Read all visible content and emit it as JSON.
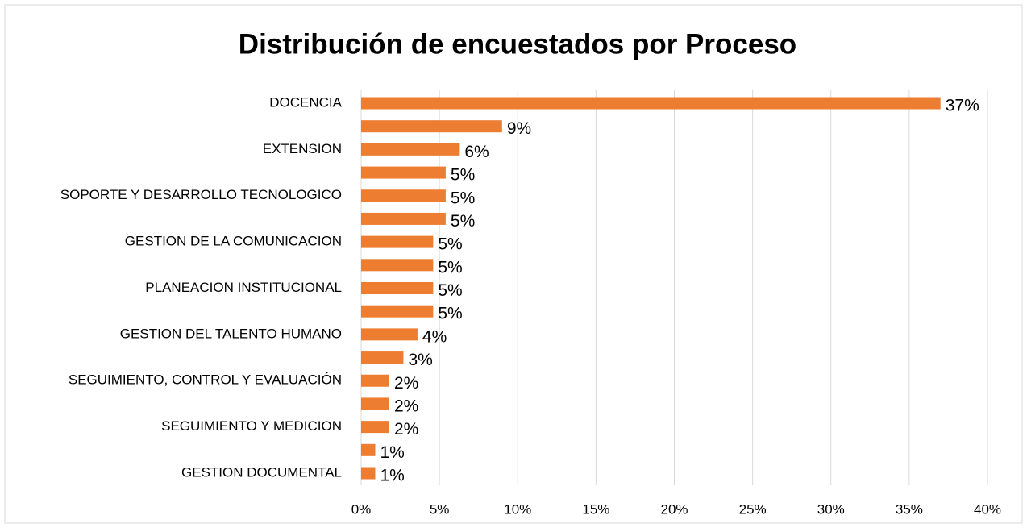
{
  "chart_data": {
    "type": "bar",
    "orientation": "horizontal",
    "title": "Distribución de encuestados por Proceso",
    "categories": [
      "DOCENCIA",
      null,
      "EXTENSION",
      null,
      "SOPORTE Y DESARROLLO TECNOLOGICO",
      null,
      "GESTION DE LA COMUNICACION",
      null,
      "PLANEACION INSTITUCIONAL",
      null,
      "GESTION DEL TALENTO HUMANO",
      null,
      "SEGUIMIENTO, CONTROL Y EVALUACIÓN",
      null,
      "SEGUIMIENTO Y MEDICION",
      null,
      "GESTION DOCUMENTAL"
    ],
    "values": [
      37,
      9,
      6.3,
      5.4,
      5.4,
      5.4,
      4.6,
      4.6,
      4.6,
      4.6,
      3.6,
      2.7,
      1.8,
      1.8,
      1.8,
      0.9,
      0.9
    ],
    "value_labels": [
      "37%",
      "9%",
      "6%",
      "5%",
      "5%",
      "5%",
      "5%",
      "5%",
      "5%",
      "5%",
      "4%",
      "3%",
      "2%",
      "2%",
      "2%",
      "1%",
      "1%"
    ],
    "color": "#ed7d31",
    "xlim": [
      0,
      40
    ],
    "xticks": [
      {
        "value": 0,
        "label": "0%"
      },
      {
        "value": 5,
        "label": "5%"
      },
      {
        "value": 10,
        "label": "10%"
      },
      {
        "value": 15,
        "label": "15%"
      },
      {
        "value": 20,
        "label": "20%"
      },
      {
        "value": 25,
        "label": "25%"
      },
      {
        "value": 30,
        "label": "30%"
      },
      {
        "value": 35,
        "label": "35%"
      },
      {
        "value": 40,
        "label": "40%"
      }
    ],
    "grid": true
  }
}
